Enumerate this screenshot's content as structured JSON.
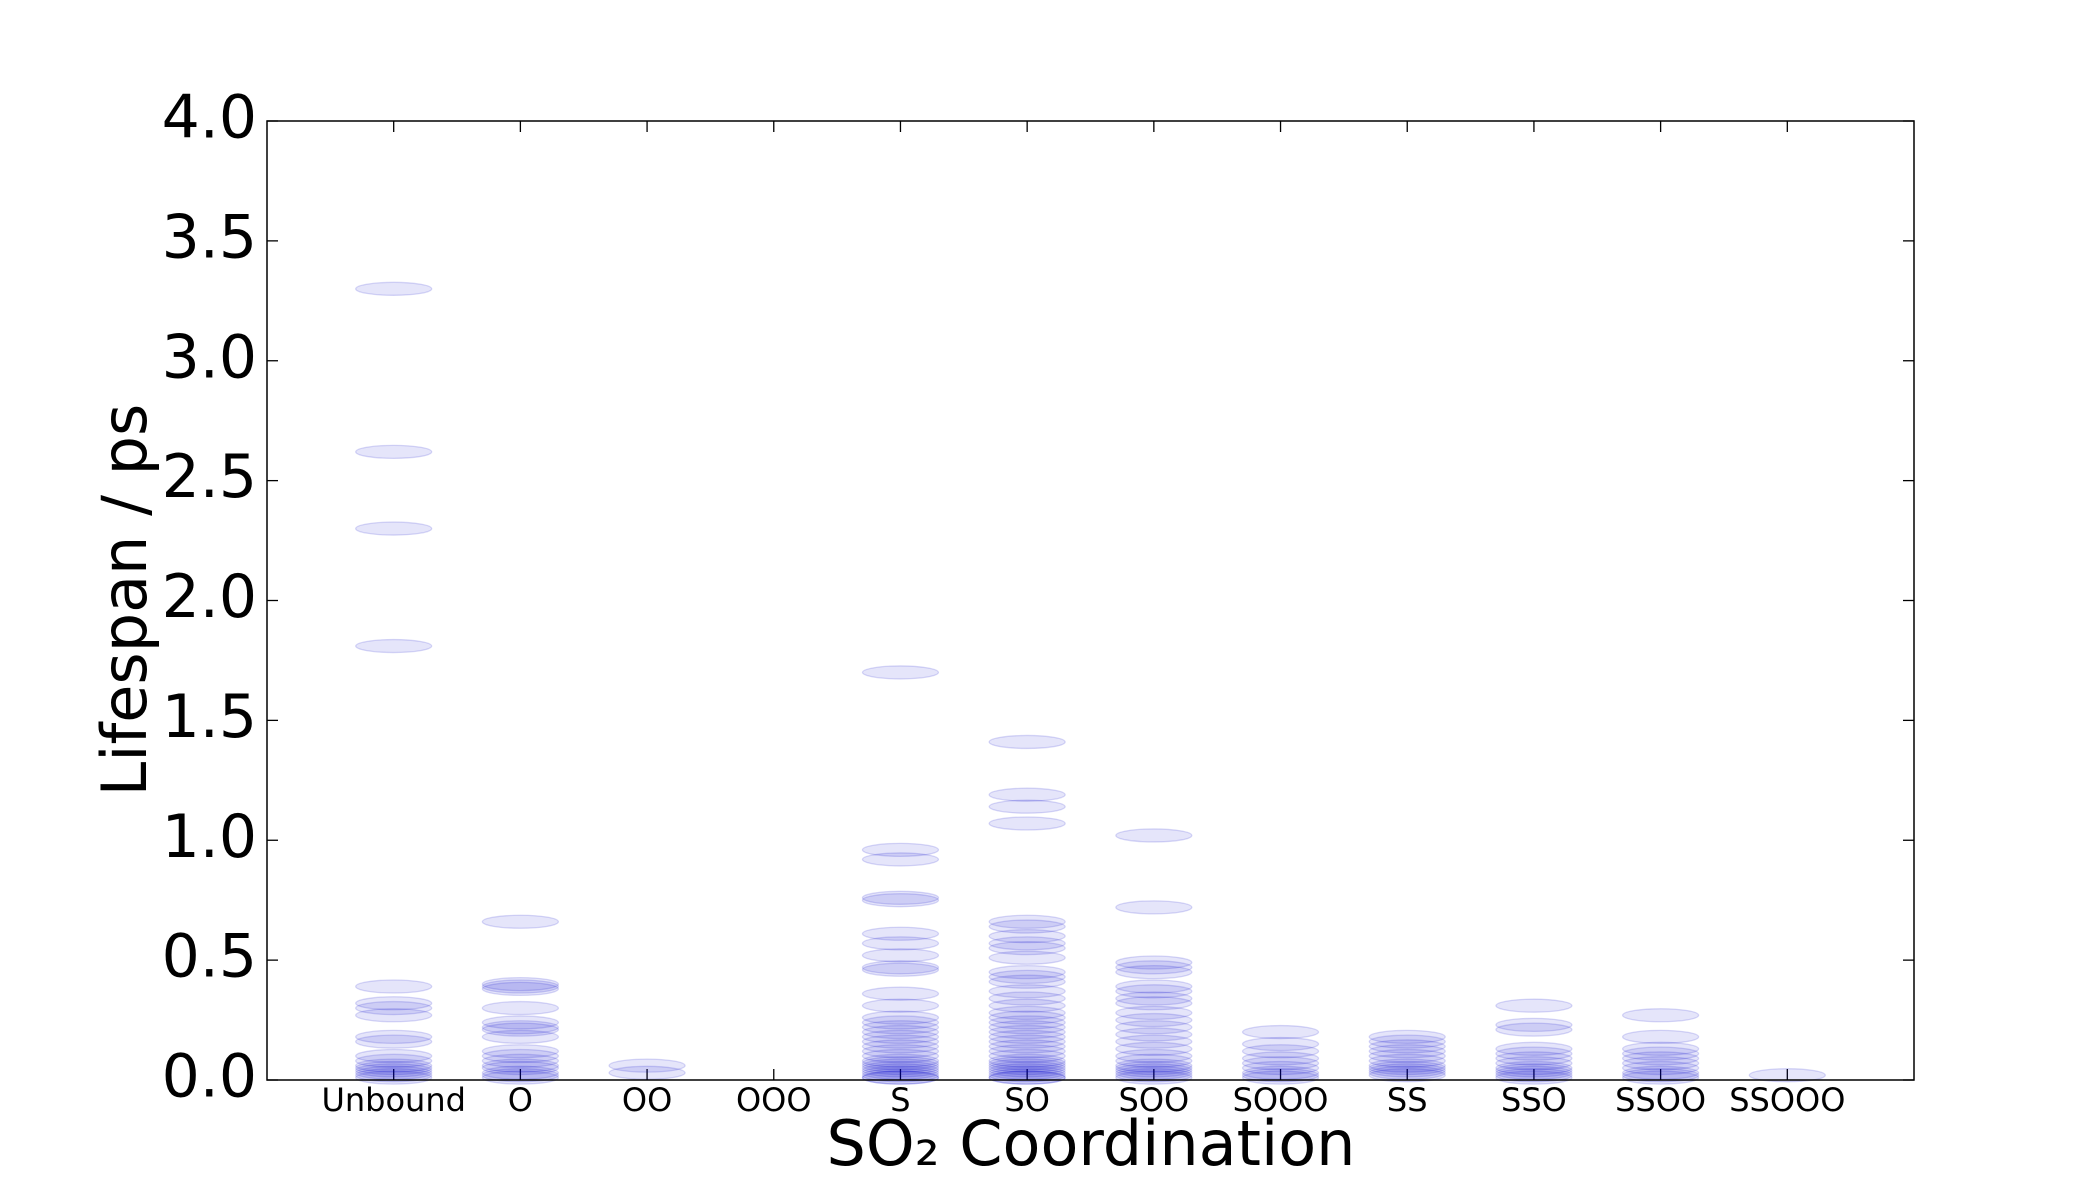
{
  "chart_data": {
    "type": "strip",
    "xlabel": "SO₂ Coordination",
    "ylabel": "Lifespan / ps",
    "categories": [
      "Unbound",
      "O",
      "OO",
      "OOO",
      "S",
      "SO",
      "SOO",
      "SOOO",
      "SS",
      "SSO",
      "SSOO",
      "SSOOO"
    ],
    "values": [
      [
        3.3,
        2.62,
        2.3,
        1.81,
        0.39,
        0.32,
        0.3,
        0.27,
        0.18,
        0.16,
        0.1,
        0.08,
        0.06,
        0.05,
        0.04,
        0.03,
        0.02,
        0.01
      ],
      [
        0.66,
        0.4,
        0.39,
        0.38,
        0.3,
        0.24,
        0.22,
        0.21,
        0.18,
        0.12,
        0.1,
        0.08,
        0.06,
        0.05,
        0.03,
        0.02,
        0.01
      ],
      [
        0.06,
        0.03
      ],
      [],
      [
        1.7,
        0.96,
        0.92,
        0.76,
        0.75,
        0.61,
        0.57,
        0.52,
        0.47,
        0.46,
        0.36,
        0.31,
        0.26,
        0.24,
        0.22,
        0.2,
        0.18,
        0.16,
        0.14,
        0.12,
        0.1,
        0.08,
        0.07,
        0.06,
        0.05,
        0.04,
        0.03,
        0.02,
        0.01,
        0.01
      ],
      [
        1.41,
        1.19,
        1.14,
        1.07,
        0.66,
        0.64,
        0.6,
        0.57,
        0.55,
        0.51,
        0.45,
        0.43,
        0.41,
        0.37,
        0.34,
        0.31,
        0.28,
        0.26,
        0.24,
        0.22,
        0.2,
        0.18,
        0.16,
        0.14,
        0.12,
        0.1,
        0.08,
        0.07,
        0.06,
        0.05,
        0.04,
        0.03,
        0.02,
        0.01,
        0.01
      ],
      [
        1.02,
        0.72,
        0.49,
        0.47,
        0.45,
        0.39,
        0.37,
        0.34,
        0.32,
        0.28,
        0.25,
        0.22,
        0.19,
        0.16,
        0.13,
        0.1,
        0.08,
        0.06,
        0.05,
        0.04,
        0.03,
        0.02,
        0.01
      ],
      [
        0.2,
        0.15,
        0.12,
        0.09,
        0.07,
        0.05,
        0.03,
        0.02,
        0.01
      ],
      [
        0.18,
        0.16,
        0.14,
        0.12,
        0.1,
        0.08,
        0.06,
        0.05,
        0.04,
        0.03,
        0.02
      ],
      [
        0.31,
        0.23,
        0.21,
        0.13,
        0.11,
        0.09,
        0.07,
        0.05,
        0.04,
        0.03,
        0.02,
        0.01
      ],
      [
        0.27,
        0.18,
        0.13,
        0.11,
        0.09,
        0.07,
        0.05,
        0.03,
        0.02,
        0.01
      ],
      [
        0.02
      ]
    ],
    "color": "#0000cc",
    "alpha": 0.1,
    "ylim": [
      0,
      4
    ],
    "yticks": [
      {
        "value": 0,
        "label": "0.0"
      },
      {
        "value": 0.5,
        "label": "0.5"
      },
      {
        "value": 1,
        "label": "1.0"
      },
      {
        "value": 1.5,
        "label": "1.5"
      },
      {
        "value": 2,
        "label": "2.0"
      },
      {
        "value": 2.5,
        "label": "2.5"
      },
      {
        "value": 3,
        "label": "3.0"
      },
      {
        "value": 3.5,
        "label": "3.5"
      },
      {
        "value": 4,
        "label": "4.0"
      }
    ]
  }
}
